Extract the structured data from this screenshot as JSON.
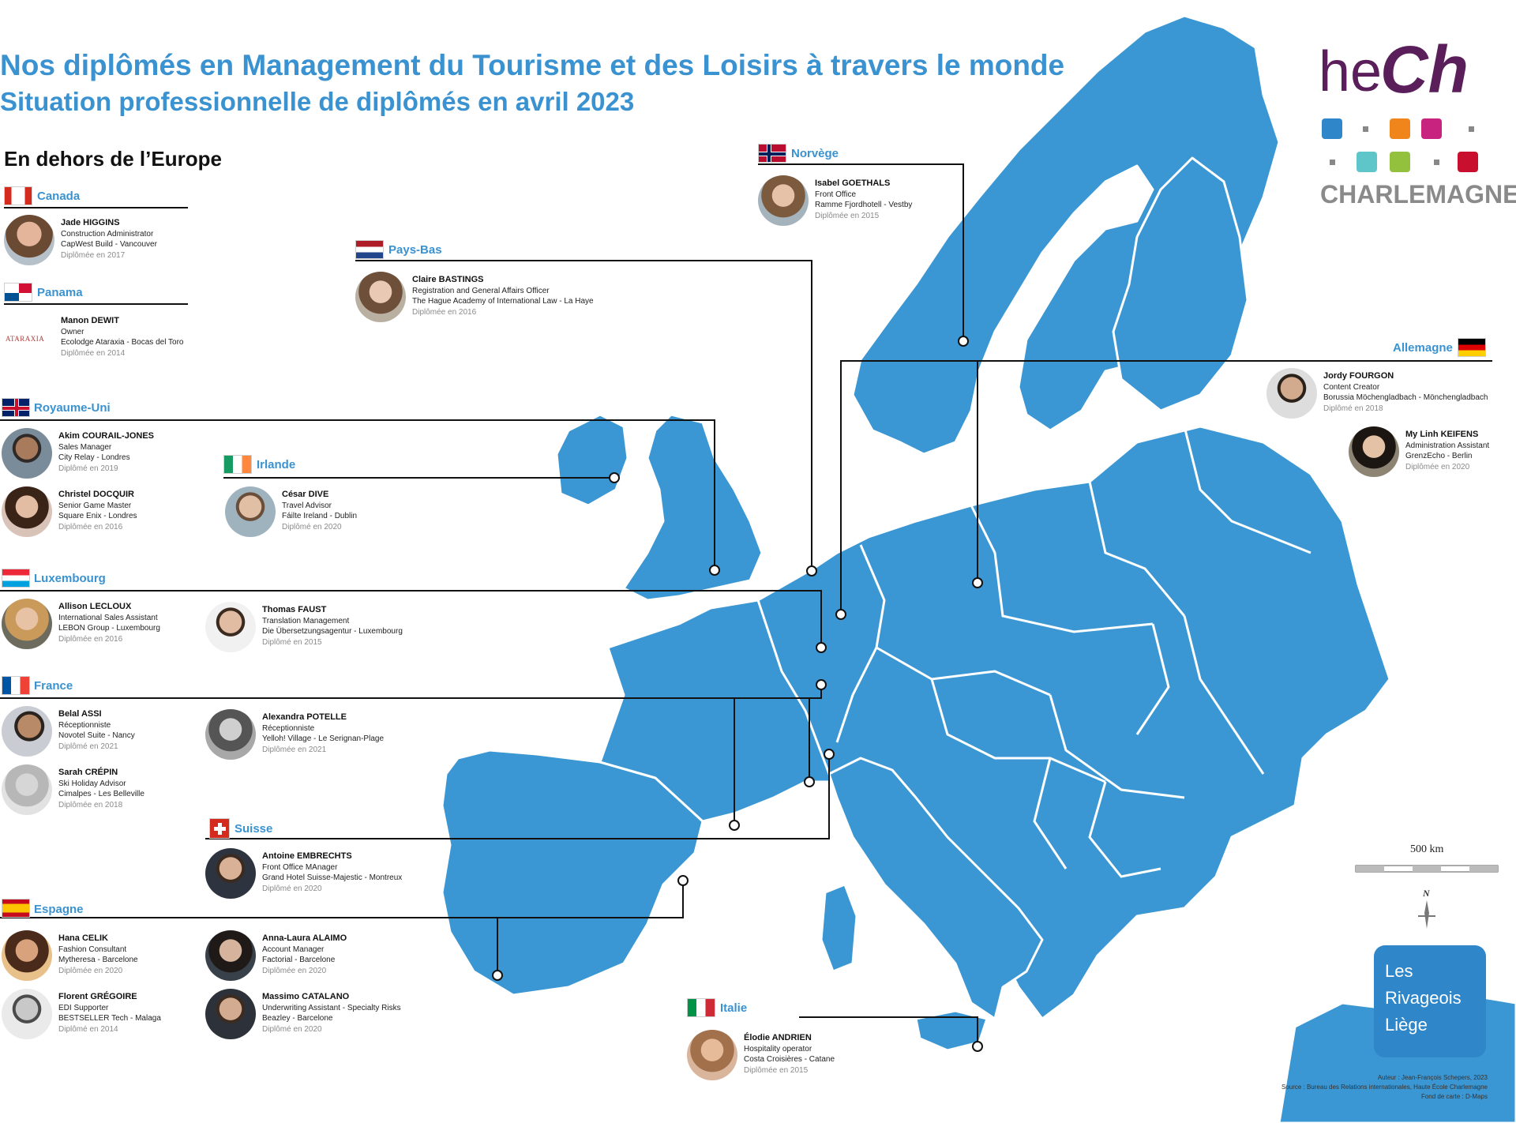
{
  "title": "Nos diplômés en Management du Tourisme et des Loisirs à travers le monde",
  "subtitle": "Situation professionnelle de diplômés en avril 2023",
  "outside_heading": "En dehors de l’Europe",
  "colors": {
    "accent": "#3a92d0",
    "map_fill": "#3b97d3",
    "border": "#ffffff",
    "logo_purple": "#5a1f5a"
  },
  "logo": {
    "he": "he",
    "ch": "Ch",
    "brand": "CHARLEMAGNE",
    "square_colors": [
      "#2f86c8",
      "#f0851b",
      "#c8237e",
      "#5ec5c9",
      "#94c13d",
      "#c8102e"
    ]
  },
  "rivageois": {
    "line1": "Les",
    "line2": "Rivageois",
    "line3": "Liège"
  },
  "scale": {
    "label": "500 km",
    "north": "N"
  },
  "credits": {
    "author": "Auteur : Jean-François Schepers, 2023",
    "source": "Source : Bureau des Relations internationales, Haute École Charlemagne",
    "basemap": "Fond de carte : D-Maps"
  },
  "countries": {
    "canada": "Canada",
    "panama": "Panama",
    "uk": "Royaume-Uni",
    "ireland": "Irlande",
    "luxembourg": "Luxembourg",
    "france": "France",
    "switzerland": "Suisse",
    "spain": "Espagne",
    "italy": "Italie",
    "norway": "Norvège",
    "netherlands": "Pays-Bas",
    "germany": "Allemagne"
  },
  "graduates": {
    "jade": {
      "name": "Jade HIGGINS",
      "role": "Construction Administrator",
      "org": "CapWest Build - Vancouver",
      "year": "Diplômée en 2017"
    },
    "manon": {
      "name": "Manon DEWIT",
      "role": "Owner",
      "org": "Ecolodge Ataraxia - Bocas del Toro",
      "year": "Diplômée en 2014",
      "logo_text": "ATARAXIA"
    },
    "akim": {
      "name": "Akim COURAIL-JONES",
      "role": "Sales Manager",
      "org": "City Relay - Londres",
      "year": "Diplômé en 2019"
    },
    "christel": {
      "name": "Christel DOCQUIR",
      "role": "Senior Game Master",
      "org": "Square Enix - Londres",
      "year": "Diplômée en 2016"
    },
    "cesar": {
      "name": "César DIVE",
      "role": "Travel Advisor",
      "org": "Fáilte Ireland - Dublin",
      "year": "Diplômé en 2020"
    },
    "allison": {
      "name": "Allison LECLOUX",
      "role": "International Sales Assistant",
      "org": "LEBON Group - Luxembourg",
      "year": "Diplômée en 2016"
    },
    "thomas": {
      "name": "Thomas FAUST",
      "role": "Translation Management",
      "org": "Die Übersetzungsagentur - Luxembourg",
      "year": "Diplômé en 2015"
    },
    "belal": {
      "name": "Belal ASSI",
      "role": "Réceptionniste",
      "org": "Novotel Suite - Nancy",
      "year": "Diplômé en 2021"
    },
    "alexandra": {
      "name": "Alexandra POTELLE",
      "role": "Réceptionniste",
      "org": "Yelloh! Village - Le Serignan-Plage",
      "year": "Diplômée en 2021"
    },
    "sarah": {
      "name": "Sarah CRÉPIN",
      "role": "Ski Holiday Advisor",
      "org": "Cimalpes - Les Belleville",
      "year": "Diplômée en 2018"
    },
    "antoine": {
      "name": "Antoine EMBRECHTS",
      "role": "Front Office MAnager",
      "org": "Grand Hotel Suisse-Majestic - Montreux",
      "year": "Diplômé en 2020"
    },
    "hana": {
      "name": "Hana CELIK",
      "role": "Fashion Consultant",
      "org": "Mytheresa - Barcelone",
      "year": "Diplômée en 2020"
    },
    "annalaura": {
      "name": "Anna-Laura ALAIMO",
      "role": "Account Manager",
      "org": "Factorial - Barcelone",
      "year": "Diplômée en 2020"
    },
    "florent": {
      "name": "Florent GRÉGOIRE",
      "role": "EDI Supporter",
      "org": "BESTSELLER Tech - Malaga",
      "year": "Diplômé en 2014"
    },
    "massimo": {
      "name": "Massimo CATALANO",
      "role": "Underwriting Assistant - Specialty Risks",
      "org": "Beazley - Barcelone",
      "year": "Diplômé en 2020"
    },
    "elodie": {
      "name": "Élodie ANDRIEN",
      "role": "Hospitality operator",
      "org": "Costa Croisières - Catane",
      "year": "Diplômée en 2015"
    },
    "isabel": {
      "name": "Isabel GOETHALS",
      "role": "Front Office",
      "org": "Ramme Fjordhotell - Vestby",
      "year": "Diplômée en 2015"
    },
    "claire": {
      "name": "Claire BASTINGS",
      "role": "Registration and General Affairs Officer",
      "org": "The Hague Academy of International Law - La Haye",
      "year": "Diplômée en 2016"
    },
    "jordy": {
      "name": "Jordy FOURGON",
      "role": "Content Creator",
      "org": "Borussia Möchengladbach - Mönchengladbach",
      "year": "Diplômé en 2018"
    },
    "mylinh": {
      "name": "My Linh KEIFENS",
      "role": "Administration Assistant",
      "org": "GrenzEcho - Berlin",
      "year": "Diplômée en 2020"
    }
  }
}
